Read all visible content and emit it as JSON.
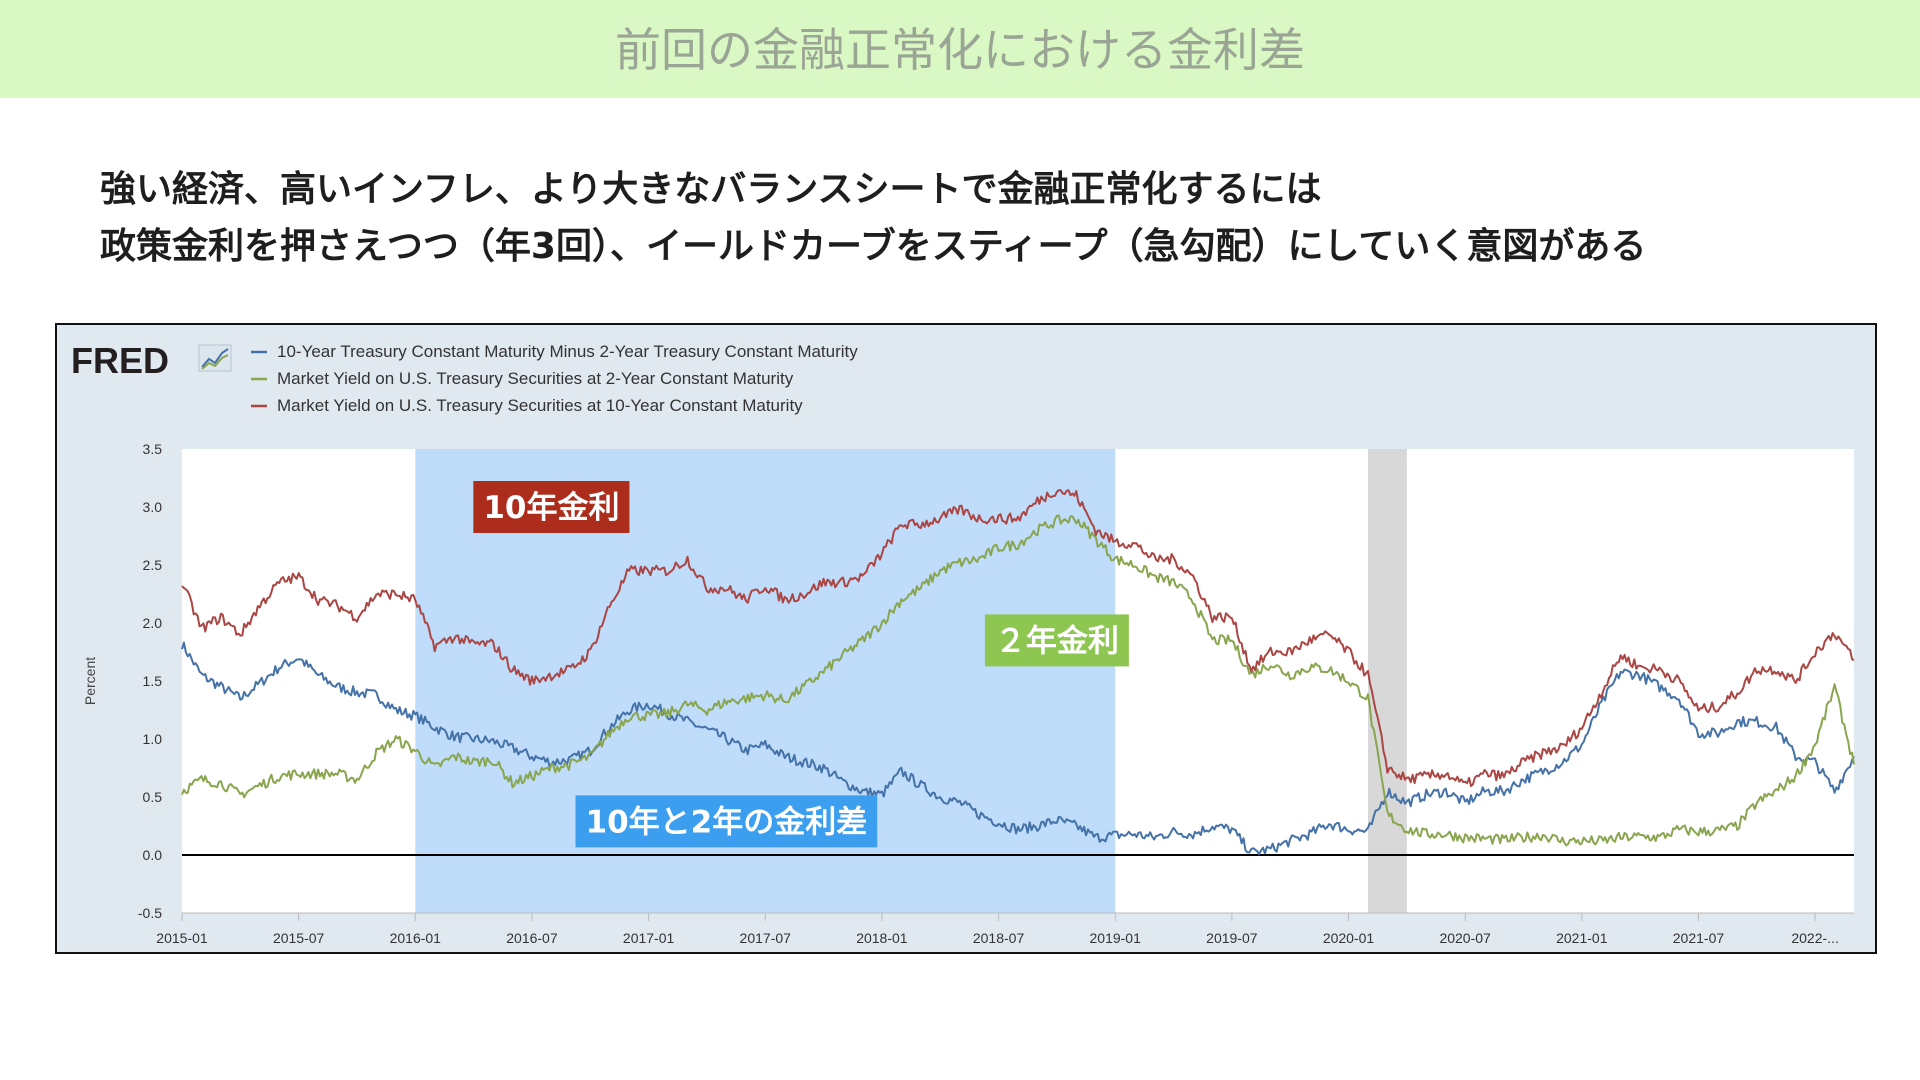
{
  "header": {
    "title": "前回の金融正常化における金利差"
  },
  "subtitle": {
    "line1": "強い経済、高いインフレ、より大きなバランスシートで金融正常化するには",
    "line2": "政策金利を押さえつつ（年3回）、イールドカーブをスティープ（急勾配）にしていく意図がある"
  },
  "chart_data": {
    "type": "line",
    "source_logo": "FRED",
    "ylabel": "Percent",
    "ylim": [
      -0.5,
      3.5
    ],
    "yticks": [
      "3.5",
      "3.0",
      "2.5",
      "2.0",
      "1.5",
      "1.0",
      "0.5",
      "0.0",
      "-0.5"
    ],
    "xlim": [
      "2015-01",
      "2022-03"
    ],
    "xticks": [
      "2015-01",
      "2015-07",
      "2016-01",
      "2016-07",
      "2017-01",
      "2017-07",
      "2018-01",
      "2018-07",
      "2019-01",
      "2019-07",
      "2020-01",
      "2020-07",
      "2021-01",
      "2021-07",
      "2022-..."
    ],
    "grid": false,
    "legend_position": "top-left",
    "highlight_band": {
      "from": "2016-01",
      "to": "2019-01",
      "color": "#bfdcfb"
    },
    "recession_band": {
      "from": "2020-02",
      "to": "2020-04",
      "color": "#d8d8d8"
    },
    "zero_line": 0.0,
    "series": [
      {
        "name": "10-Year Treasury Constant Maturity Minus 2-Year Treasury Constant Maturity",
        "color": "#4572a7",
        "points": [
          [
            "2015-01-01",
            1.82
          ],
          [
            "2015-02-01",
            1.55
          ],
          [
            "2015-03-01",
            1.45
          ],
          [
            "2015-04-01",
            1.35
          ],
          [
            "2015-05-01",
            1.48
          ],
          [
            "2015-06-01",
            1.62
          ],
          [
            "2015-07-01",
            1.7
          ],
          [
            "2015-08-01",
            1.55
          ],
          [
            "2015-09-01",
            1.45
          ],
          [
            "2015-10-01",
            1.4
          ],
          [
            "2015-11-01",
            1.38
          ],
          [
            "2015-12-01",
            1.25
          ],
          [
            "2016-01-01",
            1.2
          ],
          [
            "2016-02-01",
            1.1
          ],
          [
            "2016-03-01",
            1.02
          ],
          [
            "2016-04-01",
            1.0
          ],
          [
            "2016-05-01",
            0.98
          ],
          [
            "2016-06-01",
            0.92
          ],
          [
            "2016-07-01",
            0.85
          ],
          [
            "2016-08-01",
            0.8
          ],
          [
            "2016-09-01",
            0.82
          ],
          [
            "2016-10-01",
            0.9
          ],
          [
            "2016-11-01",
            1.1
          ],
          [
            "2016-12-01",
            1.25
          ],
          [
            "2017-01-01",
            1.3
          ],
          [
            "2017-02-01",
            1.22
          ],
          [
            "2017-03-01",
            1.15
          ],
          [
            "2017-04-01",
            1.08
          ],
          [
            "2017-05-01",
            1.0
          ],
          [
            "2017-06-01",
            0.9
          ],
          [
            "2017-07-01",
            0.95
          ],
          [
            "2017-08-01",
            0.85
          ],
          [
            "2017-09-01",
            0.8
          ],
          [
            "2017-10-01",
            0.75
          ],
          [
            "2017-11-01",
            0.63
          ],
          [
            "2017-12-01",
            0.55
          ],
          [
            "2018-01-01",
            0.52
          ],
          [
            "2018-02-01",
            0.72
          ],
          [
            "2018-03-01",
            0.6
          ],
          [
            "2018-04-01",
            0.5
          ],
          [
            "2018-05-01",
            0.45
          ],
          [
            "2018-06-01",
            0.35
          ],
          [
            "2018-07-01",
            0.28
          ],
          [
            "2018-08-01",
            0.22
          ],
          [
            "2018-09-01",
            0.25
          ],
          [
            "2018-10-01",
            0.3
          ],
          [
            "2018-11-01",
            0.25
          ],
          [
            "2018-12-01",
            0.15
          ],
          [
            "2019-01-01",
            0.17
          ],
          [
            "2019-02-01",
            0.18
          ],
          [
            "2019-03-01",
            0.15
          ],
          [
            "2019-04-01",
            0.2
          ],
          [
            "2019-05-01",
            0.18
          ],
          [
            "2019-06-01",
            0.25
          ],
          [
            "2019-07-01",
            0.22
          ],
          [
            "2019-08-01",
            0.02
          ],
          [
            "2019-09-01",
            0.05
          ],
          [
            "2019-10-01",
            0.12
          ],
          [
            "2019-11-01",
            0.18
          ],
          [
            "2019-12-01",
            0.27
          ],
          [
            "2020-01-01",
            0.22
          ],
          [
            "2020-02-01",
            0.2
          ],
          [
            "2020-03-01",
            0.55
          ],
          [
            "2020-04-01",
            0.45
          ],
          [
            "2020-05-01",
            0.52
          ],
          [
            "2020-06-01",
            0.55
          ],
          [
            "2020-07-01",
            0.45
          ],
          [
            "2020-08-01",
            0.55
          ],
          [
            "2020-09-01",
            0.55
          ],
          [
            "2020-10-01",
            0.65
          ],
          [
            "2020-11-01",
            0.72
          ],
          [
            "2020-12-01",
            0.8
          ],
          [
            "2021-01-01",
            0.95
          ],
          [
            "2021-02-01",
            1.3
          ],
          [
            "2021-03-01",
            1.58
          ],
          [
            "2021-04-01",
            1.55
          ],
          [
            "2021-05-01",
            1.45
          ],
          [
            "2021-06-01",
            1.35
          ],
          [
            "2021-07-01",
            1.05
          ],
          [
            "2021-08-01",
            1.05
          ],
          [
            "2021-09-01",
            1.15
          ],
          [
            "2021-10-01",
            1.15
          ],
          [
            "2021-11-01",
            1.1
          ],
          [
            "2021-12-01",
            0.85
          ],
          [
            "2022-01-01",
            0.8
          ],
          [
            "2022-02-01",
            0.55
          ],
          [
            "2022-03-01",
            0.85
          ]
        ]
      },
      {
        "name": "Market Yield on U.S. Treasury Securities at 2-Year Constant Maturity",
        "color": "#89a54e",
        "points": [
          [
            "2015-01-01",
            0.55
          ],
          [
            "2015-02-01",
            0.65
          ],
          [
            "2015-03-01",
            0.62
          ],
          [
            "2015-04-01",
            0.52
          ],
          [
            "2015-05-01",
            0.6
          ],
          [
            "2015-06-01",
            0.68
          ],
          [
            "2015-07-01",
            0.7
          ],
          [
            "2015-08-01",
            0.7
          ],
          [
            "2015-09-01",
            0.7
          ],
          [
            "2015-10-01",
            0.65
          ],
          [
            "2015-11-01",
            0.88
          ],
          [
            "2015-12-01",
            1.0
          ],
          [
            "2016-01-01",
            0.9
          ],
          [
            "2016-02-01",
            0.75
          ],
          [
            "2016-03-01",
            0.85
          ],
          [
            "2016-04-01",
            0.8
          ],
          [
            "2016-05-01",
            0.82
          ],
          [
            "2016-06-01",
            0.62
          ],
          [
            "2016-07-01",
            0.68
          ],
          [
            "2016-08-01",
            0.75
          ],
          [
            "2016-09-01",
            0.78
          ],
          [
            "2016-10-01",
            0.85
          ],
          [
            "2016-11-01",
            1.05
          ],
          [
            "2016-12-01",
            1.2
          ],
          [
            "2017-01-01",
            1.2
          ],
          [
            "2017-02-01",
            1.22
          ],
          [
            "2017-03-01",
            1.3
          ],
          [
            "2017-04-01",
            1.25
          ],
          [
            "2017-05-01",
            1.32
          ],
          [
            "2017-06-01",
            1.35
          ],
          [
            "2017-07-01",
            1.38
          ],
          [
            "2017-08-01",
            1.33
          ],
          [
            "2017-09-01",
            1.45
          ],
          [
            "2017-10-01",
            1.58
          ],
          [
            "2017-11-01",
            1.72
          ],
          [
            "2017-12-01",
            1.85
          ],
          [
            "2018-01-01",
            2.0
          ],
          [
            "2018-02-01",
            2.2
          ],
          [
            "2018-03-01",
            2.3
          ],
          [
            "2018-04-01",
            2.45
          ],
          [
            "2018-05-01",
            2.52
          ],
          [
            "2018-06-01",
            2.55
          ],
          [
            "2018-07-01",
            2.65
          ],
          [
            "2018-08-01",
            2.68
          ],
          [
            "2018-09-01",
            2.8
          ],
          [
            "2018-10-01",
            2.88
          ],
          [
            "2018-11-01",
            2.9
          ],
          [
            "2018-12-01",
            2.72
          ],
          [
            "2019-01-01",
            2.55
          ],
          [
            "2019-02-01",
            2.5
          ],
          [
            "2019-03-01",
            2.4
          ],
          [
            "2019-04-01",
            2.35
          ],
          [
            "2019-05-01",
            2.2
          ],
          [
            "2019-06-01",
            1.85
          ],
          [
            "2019-07-01",
            1.85
          ],
          [
            "2019-08-01",
            1.55
          ],
          [
            "2019-09-01",
            1.65
          ],
          [
            "2019-10-01",
            1.55
          ],
          [
            "2019-11-01",
            1.62
          ],
          [
            "2019-12-01",
            1.6
          ],
          [
            "2020-01-01",
            1.5
          ],
          [
            "2020-02-01",
            1.35
          ],
          [
            "2020-03-01",
            0.35
          ],
          [
            "2020-04-01",
            0.22
          ],
          [
            "2020-05-01",
            0.18
          ],
          [
            "2020-06-01",
            0.18
          ],
          [
            "2020-07-01",
            0.15
          ],
          [
            "2020-08-01",
            0.14
          ],
          [
            "2020-09-01",
            0.13
          ],
          [
            "2020-10-01",
            0.15
          ],
          [
            "2020-11-01",
            0.17
          ],
          [
            "2020-12-01",
            0.12
          ],
          [
            "2021-01-01",
            0.12
          ],
          [
            "2021-02-01",
            0.12
          ],
          [
            "2021-03-01",
            0.15
          ],
          [
            "2021-04-01",
            0.16
          ],
          [
            "2021-05-01",
            0.15
          ],
          [
            "2021-06-01",
            0.22
          ],
          [
            "2021-07-01",
            0.2
          ],
          [
            "2021-08-01",
            0.21
          ],
          [
            "2021-09-01",
            0.25
          ],
          [
            "2021-10-01",
            0.45
          ],
          [
            "2021-11-01",
            0.55
          ],
          [
            "2021-12-01",
            0.68
          ],
          [
            "2022-01-01",
            0.95
          ],
          [
            "2022-02-01",
            1.45
          ],
          [
            "2022-03-01",
            0.78
          ]
        ]
      },
      {
        "name": "Market Yield on U.S. Treasury Securities at 10-Year Constant Maturity",
        "color": "#aa4643",
        "points": [
          [
            "2015-01-01",
            2.35
          ],
          [
            "2015-02-01",
            1.95
          ],
          [
            "2015-03-01",
            2.05
          ],
          [
            "2015-04-01",
            1.9
          ],
          [
            "2015-05-01",
            2.15
          ],
          [
            "2015-06-01",
            2.35
          ],
          [
            "2015-07-01",
            2.4
          ],
          [
            "2015-08-01",
            2.2
          ],
          [
            "2015-09-01",
            2.15
          ],
          [
            "2015-10-01",
            2.05
          ],
          [
            "2015-11-01",
            2.25
          ],
          [
            "2015-12-01",
            2.25
          ],
          [
            "2016-01-01",
            2.2
          ],
          [
            "2016-02-01",
            1.8
          ],
          [
            "2016-03-01",
            1.88
          ],
          [
            "2016-04-01",
            1.82
          ],
          [
            "2016-05-01",
            1.82
          ],
          [
            "2016-06-01",
            1.6
          ],
          [
            "2016-07-01",
            1.5
          ],
          [
            "2016-08-01",
            1.55
          ],
          [
            "2016-09-01",
            1.6
          ],
          [
            "2016-10-01",
            1.75
          ],
          [
            "2016-11-01",
            2.15
          ],
          [
            "2016-12-01",
            2.45
          ],
          [
            "2017-01-01",
            2.45
          ],
          [
            "2017-02-01",
            2.45
          ],
          [
            "2017-03-01",
            2.55
          ],
          [
            "2017-04-01",
            2.3
          ],
          [
            "2017-05-01",
            2.3
          ],
          [
            "2017-06-01",
            2.2
          ],
          [
            "2017-07-01",
            2.32
          ],
          [
            "2017-08-01",
            2.2
          ],
          [
            "2017-09-01",
            2.25
          ],
          [
            "2017-10-01",
            2.35
          ],
          [
            "2017-11-01",
            2.35
          ],
          [
            "2017-12-01",
            2.4
          ],
          [
            "2018-01-01",
            2.6
          ],
          [
            "2018-02-01",
            2.85
          ],
          [
            "2018-03-01",
            2.85
          ],
          [
            "2018-04-01",
            2.9
          ],
          [
            "2018-05-01",
            2.98
          ],
          [
            "2018-06-01",
            2.9
          ],
          [
            "2018-07-01",
            2.9
          ],
          [
            "2018-08-01",
            2.9
          ],
          [
            "2018-09-01",
            3.05
          ],
          [
            "2018-10-01",
            3.15
          ],
          [
            "2018-11-01",
            3.1
          ],
          [
            "2018-12-01",
            2.8
          ],
          [
            "2019-01-01",
            2.7
          ],
          [
            "2019-02-01",
            2.68
          ],
          [
            "2019-03-01",
            2.55
          ],
          [
            "2019-04-01",
            2.55
          ],
          [
            "2019-05-01",
            2.4
          ],
          [
            "2019-06-01",
            2.05
          ],
          [
            "2019-07-01",
            2.05
          ],
          [
            "2019-08-01",
            1.6
          ],
          [
            "2019-09-01",
            1.75
          ],
          [
            "2019-10-01",
            1.75
          ],
          [
            "2019-11-01",
            1.85
          ],
          [
            "2019-12-01",
            1.9
          ],
          [
            "2020-01-01",
            1.75
          ],
          [
            "2020-02-01",
            1.55
          ],
          [
            "2020-03-01",
            0.75
          ],
          [
            "2020-04-01",
            0.65
          ],
          [
            "2020-05-01",
            0.68
          ],
          [
            "2020-06-01",
            0.7
          ],
          [
            "2020-07-01",
            0.6
          ],
          [
            "2020-08-01",
            0.7
          ],
          [
            "2020-09-01",
            0.68
          ],
          [
            "2020-10-01",
            0.8
          ],
          [
            "2020-11-01",
            0.88
          ],
          [
            "2020-12-01",
            0.93
          ],
          [
            "2021-01-01",
            1.1
          ],
          [
            "2021-02-01",
            1.4
          ],
          [
            "2021-03-01",
            1.72
          ],
          [
            "2021-04-01",
            1.62
          ],
          [
            "2021-05-01",
            1.6
          ],
          [
            "2021-06-01",
            1.5
          ],
          [
            "2021-07-01",
            1.25
          ],
          [
            "2021-08-01",
            1.28
          ],
          [
            "2021-09-01",
            1.4
          ],
          [
            "2021-10-01",
            1.6
          ],
          [
            "2021-11-01",
            1.6
          ],
          [
            "2021-12-01",
            1.5
          ],
          [
            "2022-01-01",
            1.75
          ],
          [
            "2022-02-01",
            1.92
          ],
          [
            "2022-03-01",
            1.68
          ]
        ]
      }
    ],
    "annotations": [
      {
        "text": "10年金利",
        "color": "#ac2d1c",
        "date": "2016-08",
        "value": 3.0
      },
      {
        "text": "２年金利",
        "color": "#8dc751",
        "date": "2018-10",
        "value": 1.85
      },
      {
        "text": "10年と2年の金利差",
        "color": "#3b9eee",
        "date": "2017-05",
        "value": 0.29
      }
    ]
  }
}
